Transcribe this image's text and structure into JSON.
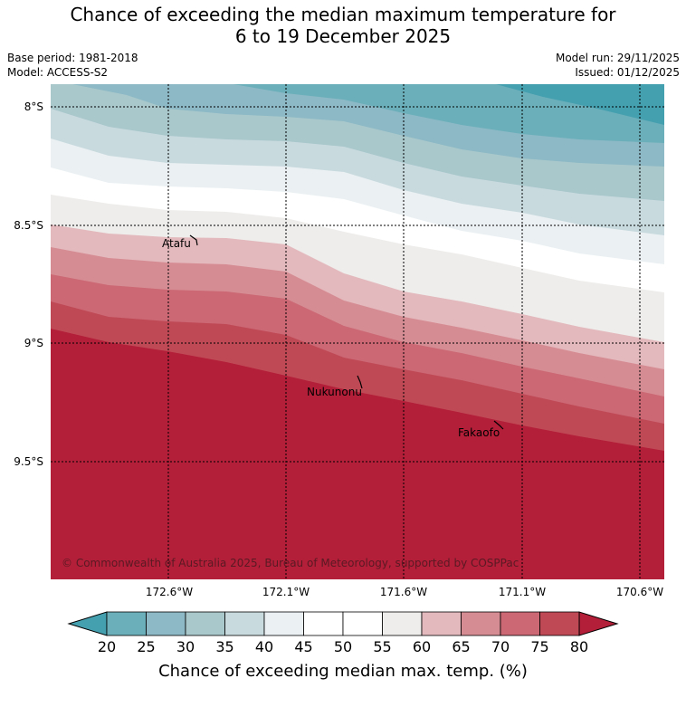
{
  "title": {
    "line1": "Chance of exceeding the median maximum temperature for",
    "line2": "6 to 19 December 2025"
  },
  "meta": {
    "base_period": "Base period: 1981-2018",
    "model": "Model: ACCESS-S2",
    "model_run": "Model run: 29/11/2025",
    "issued": "Issued: 01/12/2025"
  },
  "map": {
    "lat_labels": [
      "8°S",
      "8.5°S",
      "9°S",
      "9.5°S"
    ],
    "lon_labels": [
      "172.6°W",
      "172.1°W",
      "171.6°W",
      "171.1°W",
      "170.6°W"
    ],
    "places": [
      "Atafu",
      "Nukunonu",
      "Fakaofo"
    ],
    "copyright": "© Commonwealth of Australia 2025, Bureau of Meteorology, supported by COSPPac"
  },
  "colorbar": {
    "ticks": [
      "20",
      "25",
      "30",
      "35",
      "40",
      "45",
      "50",
      "55",
      "60",
      "65",
      "70",
      "75",
      "80"
    ],
    "label": "Chance of exceeding median max. temp. (%)",
    "colors": [
      "#449faf",
      "#6aafba",
      "#8cb9c5",
      "#a9c8cc",
      "#c9dadf",
      "#ebf1f3",
      "#ffffff",
      "#ffffff",
      "#eeedeb",
      "#e3b9bd",
      "#d68c93",
      "#cb6874",
      "#c04956",
      "#b31e38"
    ]
  }
}
